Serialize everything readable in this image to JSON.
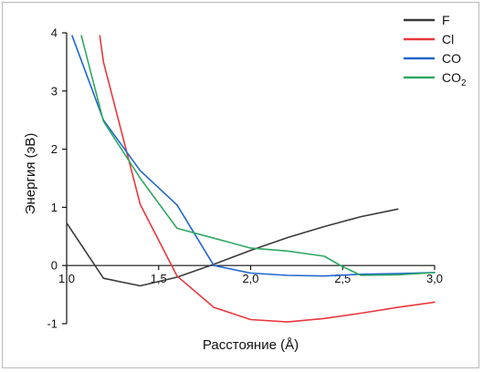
{
  "chart_data": {
    "type": "line",
    "xlabel": "Расстояние (Å)",
    "ylabel": "Энергия (эВ)",
    "xlim": [
      1.0,
      3.0
    ],
    "ylim": [
      -1,
      4
    ],
    "xticks": [
      1.0,
      1.5,
      2.0,
      2.5,
      3.0
    ],
    "xtick_labels": [
      "1,0",
      "1,5",
      "2,0",
      "2,5",
      "3,0"
    ],
    "yticks": [
      -1,
      0,
      1,
      2,
      3,
      4
    ],
    "ytick_labels": [
      "-1",
      "0",
      "1",
      "2",
      "3",
      "4"
    ],
    "legend_position": "top-right",
    "grid": false,
    "series": [
      {
        "name": "F",
        "color": "#3a3a3a",
        "x": [
          1.0,
          1.2,
          1.4,
          1.6,
          1.8,
          2.0,
          2.2,
          2.4,
          2.6,
          2.8
        ],
        "y": [
          0.73,
          -0.22,
          -0.35,
          -0.2,
          0.02,
          0.26,
          0.48,
          0.67,
          0.84,
          0.97
        ]
      },
      {
        "name": "Cl",
        "legend_label": "Cl",
        "color": "#e8383d",
        "x": [
          1.18,
          1.2,
          1.4,
          1.6,
          1.8,
          2.0,
          2.2,
          2.4,
          2.6,
          2.8,
          3.0
        ],
        "y": [
          3.95,
          3.5,
          1.05,
          -0.18,
          -0.72,
          -0.93,
          -0.97,
          -0.91,
          -0.82,
          -0.72,
          -0.63
        ]
      },
      {
        "name": "CO",
        "legend_label": "CO",
        "color": "#2266cc",
        "x": [
          1.03,
          1.2,
          1.4,
          1.6,
          1.8,
          2.0,
          2.2,
          2.4,
          2.6,
          2.8,
          3.0
        ],
        "y": [
          3.95,
          2.5,
          1.63,
          1.04,
          0.0,
          -0.13,
          -0.17,
          -0.18,
          -0.15,
          -0.14,
          -0.12
        ]
      },
      {
        "name": "CO2",
        "legend_label": "CO",
        "legend_subscript": "2",
        "color": "#2fa862",
        "x": [
          1.08,
          1.2,
          1.4,
          1.6,
          1.8,
          2.0,
          2.2,
          2.4,
          2.5,
          2.6,
          2.8,
          3.0
        ],
        "y": [
          3.95,
          2.48,
          1.5,
          0.64,
          0.47,
          0.3,
          0.25,
          0.16,
          -0.02,
          -0.17,
          -0.16,
          -0.12
        ]
      }
    ]
  }
}
